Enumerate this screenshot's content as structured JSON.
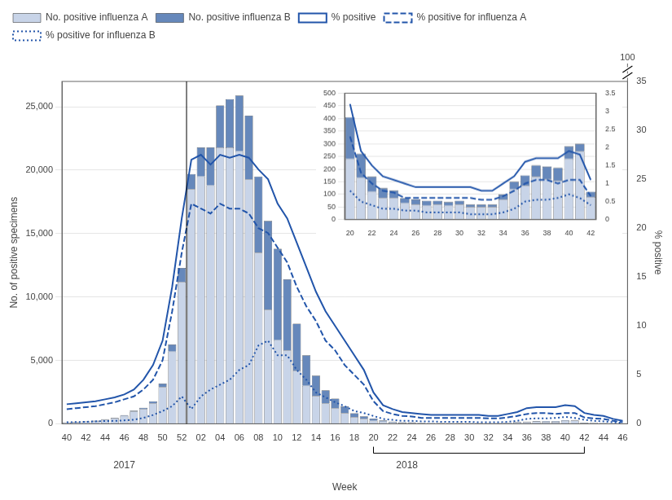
{
  "chart_data": [
    {
      "type": "bar",
      "stacked": true,
      "categories": [
        "40",
        null,
        "42",
        null,
        "44",
        null,
        "46",
        null,
        "48",
        null,
        "50",
        null,
        "52",
        null,
        "02",
        null,
        "04",
        null,
        "06",
        null,
        "08",
        null,
        "10",
        null,
        "12",
        null,
        "14",
        null,
        "16",
        null,
        "18",
        null,
        "20",
        null,
        "22",
        null,
        "24",
        null,
        "26",
        null,
        "28",
        null,
        "30",
        null,
        "32",
        null,
        "34",
        null,
        "36",
        null,
        "38",
        null,
        "40",
        null,
        "42",
        null,
        "44",
        null,
        "46"
      ],
      "series": [
        {
          "name": "No. positive influenza A",
          "type": "bar",
          "color": "#c8d4e8",
          "values": [
            100,
            130,
            170,
            220,
            320,
            420,
            620,
            950,
            1150,
            1600,
            2900,
            5700,
            11200,
            18500,
            19500,
            18800,
            21800,
            21800,
            21500,
            19300,
            13500,
            9000,
            6600,
            5800,
            4200,
            3000,
            2200,
            1600,
            1250,
            850,
            520,
            380,
            240,
            165,
            110,
            85,
            85,
            65,
            60,
            55,
            60,
            55,
            60,
            50,
            50,
            50,
            80,
            120,
            135,
            170,
            160,
            155,
            240,
            270,
            90,
            80,
            60,
            30,
            20
          ]
        },
        {
          "name": "No. positive influenza B",
          "type": "bar",
          "color": "#6688bb",
          "values": [
            15,
            20,
            25,
            30,
            40,
            50,
            65,
            85,
            120,
            170,
            280,
            550,
            1100,
            1200,
            2300,
            3000,
            3300,
            3800,
            4400,
            5000,
            6000,
            7000,
            7200,
            5600,
            3700,
            2400,
            1600,
            1050,
            730,
            520,
            310,
            200,
            165,
            95,
            60,
            40,
            30,
            20,
            20,
            20,
            15,
            15,
            15,
            10,
            10,
            10,
            20,
            30,
            40,
            45,
            50,
            50,
            50,
            30,
            20,
            20,
            15,
            10,
            5
          ]
        },
        {
          "name": "% positive",
          "type": "line",
          "axis": "y2",
          "color": "#2255aa",
          "line_style": "solid",
          "values": [
            2.0,
            2.1,
            2.2,
            2.3,
            2.5,
            2.7,
            3.0,
            3.5,
            4.5,
            6.0,
            8.5,
            14.0,
            21.0,
            27.0,
            27.5,
            26.5,
            27.5,
            27.2,
            27.5,
            27.2,
            26.0,
            25.0,
            22.5,
            21.0,
            18.5,
            16.0,
            13.5,
            11.5,
            10.0,
            8.5,
            7.0,
            5.5,
            3.2,
            1.9,
            1.5,
            1.2,
            1.1,
            1.0,
            0.9,
            0.9,
            0.9,
            0.9,
            0.9,
            0.9,
            0.8,
            0.8,
            1.0,
            1.2,
            1.6,
            1.7,
            1.7,
            1.7,
            1.9,
            1.8,
            1.1,
            0.9,
            0.8,
            0.5,
            0.3
          ]
        },
        {
          "name": "% positive for influenza A",
          "type": "line",
          "axis": "y2",
          "color": "#2255aa",
          "line_style": "dashed",
          "values": [
            1.5,
            1.6,
            1.7,
            1.8,
            2.0,
            2.2,
            2.5,
            2.8,
            3.5,
            4.5,
            6.5,
            11.5,
            17.5,
            22.5,
            22.0,
            21.5,
            22.5,
            22.0,
            22.0,
            21.5,
            20.0,
            19.5,
            18.0,
            16.5,
            14.0,
            12.0,
            10.5,
            8.5,
            7.5,
            6.0,
            5.0,
            4.0,
            2.3,
            1.3,
            1.0,
            0.8,
            0.75,
            0.6,
            0.6,
            0.6,
            0.6,
            0.6,
            0.6,
            0.6,
            0.55,
            0.55,
            0.65,
            0.8,
            1.0,
            1.1,
            1.1,
            1.0,
            1.1,
            1.1,
            0.65,
            0.55,
            0.5,
            0.3,
            0.15
          ]
        },
        {
          "name": "% positive for influenza B",
          "type": "line",
          "axis": "y2",
          "color": "#2255aa",
          "line_style": "dotted",
          "values": [
            0.15,
            0.18,
            0.2,
            0.25,
            0.28,
            0.3,
            0.35,
            0.42,
            0.6,
            0.9,
            1.3,
            1.8,
            2.8,
            1.5,
            2.8,
            3.5,
            4.0,
            4.5,
            5.5,
            6.0,
            8.0,
            8.5,
            7.0,
            7.0,
            5.5,
            4.5,
            3.2,
            2.7,
            2.2,
            1.8,
            1.3,
            1.1,
            0.8,
            0.5,
            0.4,
            0.3,
            0.3,
            0.25,
            0.25,
            0.2,
            0.2,
            0.2,
            0.2,
            0.15,
            0.15,
            0.15,
            0.2,
            0.3,
            0.5,
            0.55,
            0.55,
            0.6,
            0.7,
            0.6,
            0.4,
            0.3,
            0.25,
            0.15,
            0.1
          ]
        }
      ],
      "xlabel": "Week",
      "ylabel": "No. of positive specimens",
      "y2label": "% positive",
      "ylim": [
        0,
        27000
      ],
      "yticks": [
        0,
        {
          "value": 5000,
          "label": "5,000"
        },
        {
          "value": 10000,
          "label": "10,000"
        },
        {
          "value": 15000,
          "label": "15,000"
        },
        {
          "value": 20000,
          "label": "20,000"
        },
        {
          "value": 25000,
          "label": "25,000"
        }
      ],
      "y2lim": [
        0,
        35
      ],
      "y2ticks": [
        0,
        5,
        10,
        15,
        20,
        25,
        30,
        35
      ],
      "grid": true,
      "legend": "upper left",
      "annotations": [
        {
          "text": "2017",
          "x": [
            0,
            12
          ]
        },
        {
          "text": "2018",
          "x": [
            13,
            58
          ]
        },
        {
          "text": "100",
          "axis": "y2"
        }
      ]
    },
    {
      "type": "bar",
      "stacked": true,
      "categories": [
        "20",
        null,
        "22",
        null,
        "24",
        null,
        "26",
        null,
        "28",
        null,
        "30",
        null,
        "32",
        null,
        "34",
        null,
        "36",
        null,
        "38",
        null,
        "40",
        null,
        "42"
      ],
      "series": [
        {
          "type": "bar",
          "color": "#c8d4e8",
          "values": [
            240,
            165,
            110,
            85,
            85,
            65,
            60,
            55,
            60,
            55,
            60,
            50,
            50,
            50,
            80,
            120,
            135,
            170,
            160,
            155,
            240,
            270,
            90
          ]
        },
        {
          "type": "bar",
          "color": "#6688bb",
          "values": [
            165,
            95,
            60,
            40,
            30,
            20,
            20,
            20,
            15,
            15,
            15,
            10,
            10,
            10,
            20,
            30,
            40,
            45,
            50,
            50,
            50,
            30,
            20
          ]
        },
        {
          "type": "line",
          "axis": "y2",
          "color": "#2255aa",
          "line_style": "solid",
          "values": [
            3.2,
            1.9,
            1.5,
            1.2,
            1.1,
            1.0,
            0.9,
            0.9,
            0.9,
            0.9,
            0.9,
            0.9,
            0.8,
            0.8,
            1.0,
            1.2,
            1.6,
            1.7,
            1.7,
            1.7,
            1.9,
            1.8,
            1.1
          ]
        },
        {
          "type": "line",
          "axis": "y2",
          "color": "#2255aa",
          "line_style": "dashed",
          "values": [
            2.3,
            1.3,
            1.0,
            0.8,
            0.75,
            0.6,
            0.6,
            0.6,
            0.6,
            0.6,
            0.6,
            0.6,
            0.55,
            0.55,
            0.65,
            0.8,
            1.0,
            1.1,
            1.1,
            1.0,
            1.1,
            1.1,
            0.65
          ]
        },
        {
          "type": "line",
          "axis": "y2",
          "color": "#2255aa",
          "line_style": "dotted",
          "values": [
            0.8,
            0.5,
            0.4,
            0.3,
            0.3,
            0.25,
            0.25,
            0.2,
            0.2,
            0.2,
            0.2,
            0.15,
            0.15,
            0.15,
            0.2,
            0.3,
            0.5,
            0.55,
            0.55,
            0.6,
            0.7,
            0.6,
            0.4
          ]
        }
      ],
      "ylim": [
        0,
        500
      ],
      "yticks": [
        0,
        50,
        100,
        150,
        200,
        250,
        300,
        350,
        400,
        450,
        500
      ],
      "y2lim": [
        0,
        3.5
      ],
      "y2ticks": [
        0,
        0.5,
        1,
        1.5,
        2,
        2.5,
        3,
        3.5
      ],
      "grid": true
    }
  ]
}
